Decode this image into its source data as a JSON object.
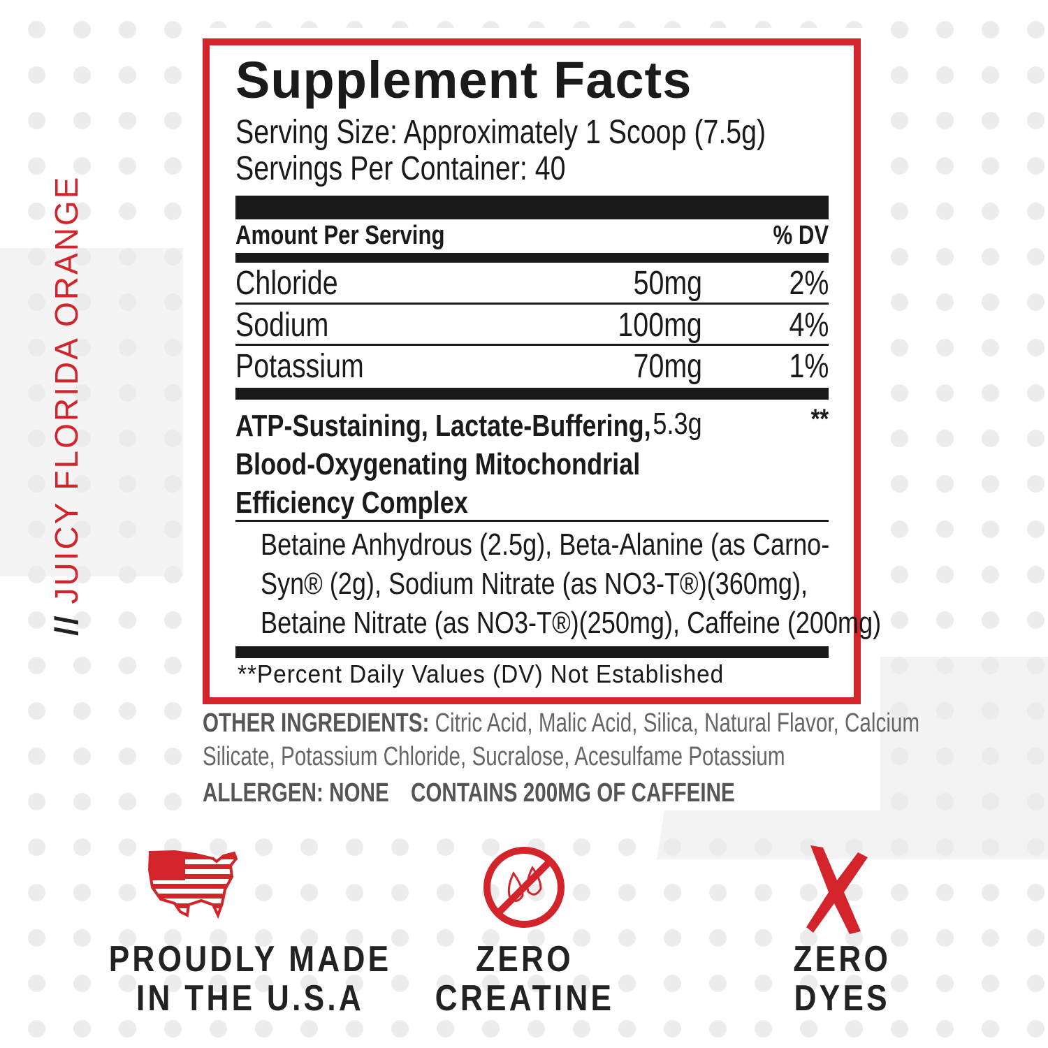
{
  "side_label": {
    "slashes": "//",
    "text": "JUICY FLORIDA ORANGE"
  },
  "facts": {
    "title": "Supplement Facts",
    "serving_size": "Serving Size: Approximately 1 Scoop (7.5g)",
    "servings_per_container": "Servings Per Container: 40",
    "amount_header": "Amount Per Serving",
    "dv_header": "% DV",
    "rows": [
      {
        "name": "Chloride",
        "amount": "50mg",
        "dv": "2%"
      },
      {
        "name": "Sodium",
        "amount": "100mg",
        "dv": "4%"
      },
      {
        "name": "Potassium",
        "amount": "70mg",
        "dv": "1%"
      }
    ],
    "complex": {
      "lines": [
        "ATP-Sustaining, Lactate-Buffering,",
        "Blood-Oxygenating Mitochondrial",
        "Efficiency Complex"
      ],
      "amount": "5.3g",
      "dv": "**"
    },
    "complex_ingredients": [
      "Betaine Anhydrous (2.5g), Beta-Alanine (as Carno-",
      "Syn® (2g), Sodium Nitrate (as NO3-T®)(360mg),",
      "Betaine Nitrate (as NO3-T®)(250mg), Caffeine (200mg)"
    ],
    "footnote": "**Percent Daily Values (DV) Not Established"
  },
  "other": {
    "label": "OTHER INGREDIENTS:",
    "line1": " Citric Acid, Malic Acid, Silica, Natural Flavor, Calcium",
    "line2": "Silicate, Potassium Chloride, Sucralose, Acesulfame Potassium",
    "allergen": "ALLERGEN: NONE",
    "caffeine": "CONTAINS 200MG OF CAFFEINE"
  },
  "badges": [
    {
      "icon": "usa-flag-map-icon",
      "line1": "PROUDLY MADE",
      "line2": "IN THE U.S.A"
    },
    {
      "icon": "no-creatine-icon",
      "line1": "ZERO",
      "line2": "CREATINE"
    },
    {
      "icon": "red-x-icon",
      "line1": "ZERO",
      "line2": "DYES"
    }
  ],
  "colors": {
    "accent": "#d4242b",
    "text": "#1a1a1a"
  }
}
